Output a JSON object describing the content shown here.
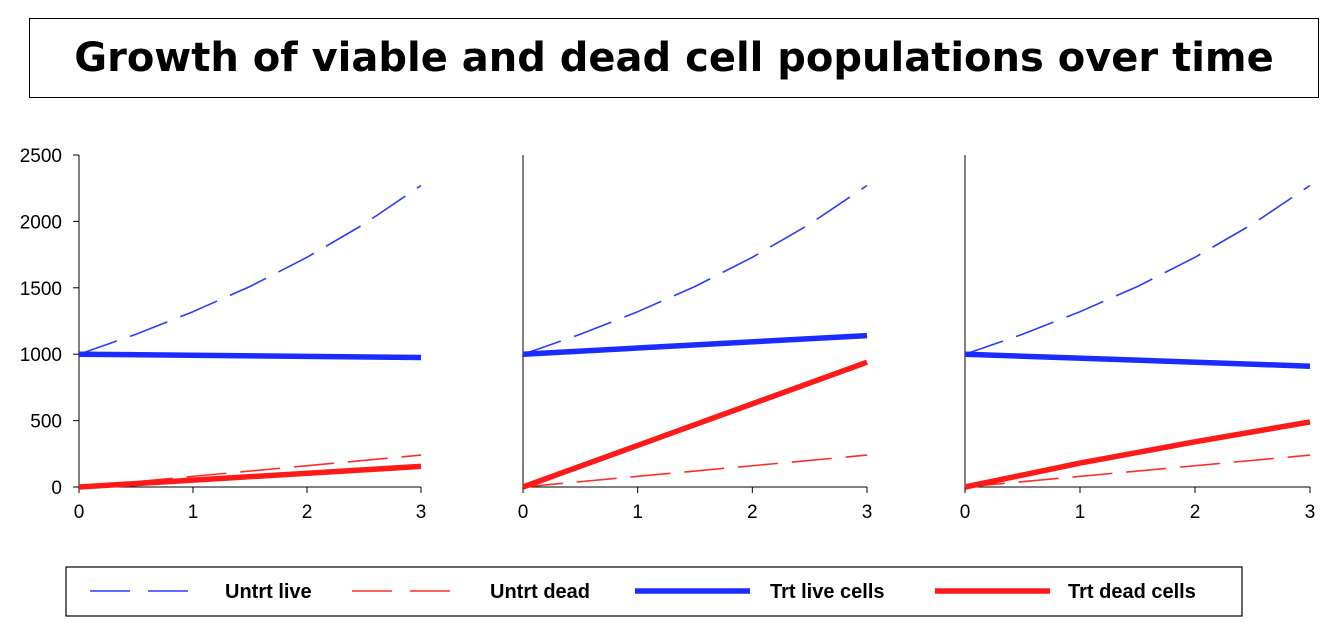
{
  "title": "Growth of viable and dead cell populations over time",
  "chart_data": [
    {
      "type": "line",
      "xlim": [
        0,
        3
      ],
      "ylim": [
        0,
        2500
      ],
      "xticks": [
        "0",
        "1",
        "2",
        "3"
      ],
      "yticks": [
        "0",
        "500",
        "1000",
        "1500",
        "2000",
        "2500"
      ],
      "series": [
        {
          "name": "Untrt live",
          "x": [
            0,
            0.5,
            1,
            1.5,
            2,
            2.5,
            3
          ],
          "y": [
            1000,
            1150,
            1320,
            1510,
            1730,
            1980,
            2270
          ]
        },
        {
          "name": "Untrt dead",
          "x": [
            0,
            3
          ],
          "y": [
            0,
            240
          ]
        },
        {
          "name": "Trt live cells",
          "x": [
            0,
            3
          ],
          "y": [
            1000,
            975
          ]
        },
        {
          "name": "Trt dead cells",
          "x": [
            0,
            3
          ],
          "y": [
            0,
            155
          ]
        }
      ]
    },
    {
      "type": "line",
      "xlim": [
        0,
        3
      ],
      "ylim": [
        0,
        2500
      ],
      "xticks": [
        "0",
        "1",
        "2",
        "3"
      ],
      "series": [
        {
          "name": "Untrt live",
          "x": [
            0,
            0.5,
            1,
            1.5,
            2,
            2.5,
            3
          ],
          "y": [
            1000,
            1150,
            1320,
            1510,
            1730,
            1980,
            2270
          ]
        },
        {
          "name": "Untrt dead",
          "x": [
            0,
            3
          ],
          "y": [
            0,
            240
          ]
        },
        {
          "name": "Trt live cells",
          "x": [
            0,
            3
          ],
          "y": [
            1000,
            1140
          ]
        },
        {
          "name": "Trt dead cells",
          "x": [
            0,
            3
          ],
          "y": [
            0,
            940
          ]
        }
      ]
    },
    {
      "type": "line",
      "xlim": [
        0,
        3
      ],
      "ylim": [
        0,
        2500
      ],
      "xticks": [
        "0",
        "1",
        "2",
        "3"
      ],
      "series": [
        {
          "name": "Untrt live",
          "x": [
            0,
            0.5,
            1,
            1.5,
            2,
            2.5,
            3
          ],
          "y": [
            1000,
            1150,
            1320,
            1510,
            1730,
            1980,
            2270
          ]
        },
        {
          "name": "Untrt dead",
          "x": [
            0,
            3
          ],
          "y": [
            0,
            240
          ]
        },
        {
          "name": "Trt live cells",
          "x": [
            0,
            3
          ],
          "y": [
            1000,
            910
          ]
        },
        {
          "name": "Trt dead cells",
          "x": [
            0,
            1,
            2,
            3
          ],
          "y": [
            0,
            180,
            340,
            490
          ]
        }
      ]
    }
  ],
  "legend": {
    "position": "bottom",
    "entries": [
      {
        "label": "Untrt live",
        "color": "#2b3cff",
        "style": "dashed",
        "width": "thin"
      },
      {
        "label": "Untrt dead",
        "color": "#ff2b2b",
        "style": "dashed",
        "width": "thin"
      },
      {
        "label": "Trt live cells",
        "color": "#1a2cff",
        "style": "solid",
        "width": "thick"
      },
      {
        "label": "Trt dead cells",
        "color": "#ff1a1a",
        "style": "solid",
        "width": "thick"
      }
    ]
  }
}
